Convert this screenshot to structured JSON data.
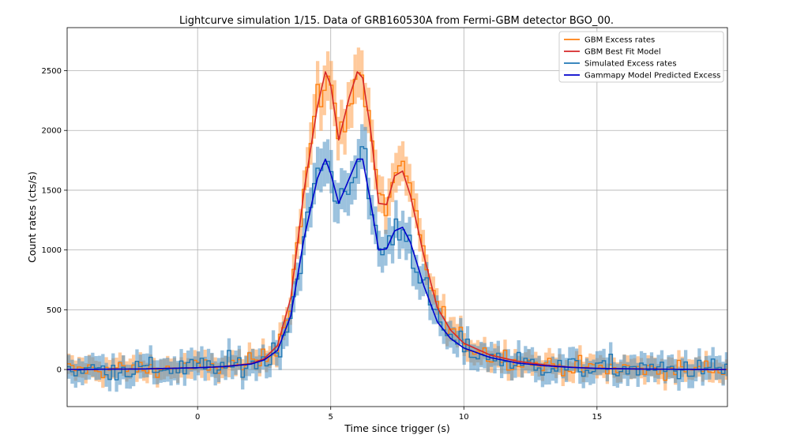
{
  "chart_data": {
    "type": "line",
    "title": "Lightcurve simulation 1/15. Data of GRB160530A from Fermi-GBM detector BGO_00.",
    "xlabel": "Time since trigger (s)",
    "ylabel": "Count rates (cts/s)",
    "xlim": [
      -4.9,
      19.9
    ],
    "ylim": [
      -310,
      2860
    ],
    "xticks": [
      0,
      5,
      10,
      15
    ],
    "yticks": [
      0,
      500,
      1000,
      1500,
      2000,
      2500
    ],
    "grid": true,
    "legend_position": "top-right",
    "legend": [
      {
        "name": "GBM Excess rates",
        "color": "#ff7f0e"
      },
      {
        "name": "GBM Best Fit Model",
        "color": "#d62728"
      },
      {
        "name": "Simulated Excess rates",
        "color": "#1f77b4"
      },
      {
        "name": "Gammapy Model Predicted Excess",
        "color": "#0000cc"
      }
    ],
    "series": [
      {
        "name": "GBM Best Fit Model",
        "color": "#d62728",
        "x": [
          -4.9,
          -2,
          0,
          1,
          2,
          2.5,
          3,
          3.5,
          4,
          4.5,
          4.8,
          5,
          5.3,
          5.7,
          6,
          6.2,
          6.5,
          6.8,
          7.1,
          7.4,
          7.7,
          8,
          8.5,
          9,
          9.5,
          10,
          11,
          12,
          13,
          14,
          15,
          17,
          19.9
        ],
        "y": [
          0,
          5,
          15,
          25,
          50,
          90,
          200,
          600,
          1500,
          2200,
          2490,
          2380,
          1920,
          2280,
          2490,
          2440,
          2000,
          1390,
          1380,
          1620,
          1660,
          1450,
          950,
          520,
          330,
          220,
          120,
          70,
          40,
          20,
          10,
          3,
          0
        ]
      },
      {
        "name": "Gammapy Model Predicted Excess",
        "color": "#0000cc",
        "x": [
          -4.9,
          -2,
          0,
          1,
          2,
          2.5,
          3,
          3.5,
          4,
          4.5,
          4.8,
          5,
          5.3,
          5.7,
          6,
          6.2,
          6.5,
          6.8,
          7.1,
          7.4,
          7.7,
          8,
          8.5,
          9,
          9.5,
          10,
          11,
          12,
          13,
          14,
          15,
          17,
          19.9
        ],
        "y": [
          0,
          5,
          15,
          25,
          45,
          80,
          160,
          450,
          1100,
          1600,
          1760,
          1640,
          1390,
          1600,
          1760,
          1760,
          1400,
          1000,
          1010,
          1160,
          1190,
          1060,
          700,
          400,
          260,
          180,
          100,
          55,
          32,
          18,
          9,
          3,
          0
        ]
      }
    ]
  }
}
